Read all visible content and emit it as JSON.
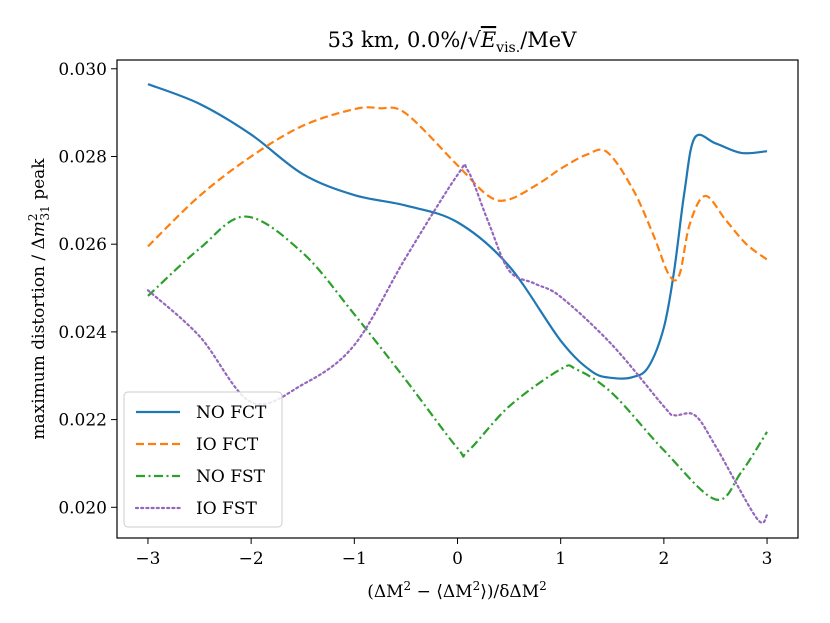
{
  "chart_data": {
    "type": "line",
    "title": "53 km, 0.0%/√E_vis./MeV",
    "title_parts": {
      "prefix": "53 km, 0.0%/",
      "evis": "E",
      "evis_sub": "vis.",
      "suffix": "/MeV"
    },
    "xlabel": "(ΔM² − ⟨ΔM²⟩)/δΔM²",
    "xlabel_parts": {
      "a": "(ΔM",
      "b": "2",
      "c": " − ⟨ΔM",
      "d": "2",
      "e": "⟩)/δΔM",
      "f": "2"
    },
    "ylabel": "maximum distortion / Δm²₃₁ peak",
    "ylabel_parts": {
      "a": "maximum distortion / Δ",
      "m": "m",
      "sup": "2",
      "sub": "31",
      "b": " peak"
    },
    "xlim": [
      -3.3,
      3.3
    ],
    "ylim": [
      0.0193,
      0.0302
    ],
    "xticks": [
      -3,
      -2,
      -1,
      0,
      1,
      2,
      3
    ],
    "xtick_labels": [
      "−3",
      "−2",
      "−1",
      "0",
      "1",
      "2",
      "3"
    ],
    "yticks": [
      0.02,
      0.022,
      0.024,
      0.026,
      0.028,
      0.03
    ],
    "ytick_labels": [
      "0.020",
      "0.022",
      "0.024",
      "0.026",
      "0.028",
      "0.030"
    ],
    "legend_position": "lower-left",
    "series": [
      {
        "name": "NO FCT",
        "color": "#1f77b4",
        "dash": "solid",
        "x": [
          -3,
          -2.5,
          -2,
          -1.5,
          -1,
          -0.5,
          0,
          0.5,
          1,
          1.3,
          1.5,
          1.7,
          1.85,
          2.0,
          2.1,
          2.2,
          2.3,
          2.5,
          2.75,
          3
        ],
        "y": [
          0.02965,
          0.0292,
          0.0285,
          0.0276,
          0.02712,
          0.02688,
          0.0265,
          0.0255,
          0.0238,
          0.0231,
          0.02295,
          0.02297,
          0.0232,
          0.0241,
          0.0254,
          0.0272,
          0.02843,
          0.0283,
          0.02808,
          0.02812
        ]
      },
      {
        "name": "IO FCT",
        "color": "#ff7f0e",
        "dash": "dashed",
        "x": [
          -3,
          -2.5,
          -2,
          -1.5,
          -1,
          -0.75,
          -0.5,
          0,
          0.3,
          0.5,
          0.8,
          1.0,
          1.25,
          1.45,
          1.7,
          1.9,
          2.05,
          2.15,
          2.25,
          2.4,
          2.6,
          2.8,
          3
        ],
        "y": [
          0.02595,
          0.0271,
          0.028,
          0.0287,
          0.02908,
          0.0291,
          0.02898,
          0.0278,
          0.0271,
          0.02702,
          0.0274,
          0.02772,
          0.02804,
          0.0281,
          0.02725,
          0.0262,
          0.0253,
          0.0253,
          0.02645,
          0.0271,
          0.02655,
          0.026,
          0.02565
        ]
      },
      {
        "name": "NO FST",
        "color": "#2ca02c",
        "dash": "dashdot",
        "x": [
          -3,
          -2.5,
          -2.05,
          -1.5,
          -1,
          -0.5,
          0,
          0.1,
          0.5,
          1.0,
          1.15,
          1.5,
          2.0,
          2.5,
          2.75,
          3
        ],
        "y": [
          0.02482,
          0.0259,
          0.02663,
          0.0258,
          0.0244,
          0.0229,
          0.02135,
          0.02128,
          0.0223,
          0.02315,
          0.02315,
          0.0226,
          0.0213,
          0.02018,
          0.0208,
          0.02172
        ]
      },
      {
        "name": "IO FST",
        "color": "#9467bd",
        "dash": "dotted",
        "x": [
          -3,
          -2.5,
          -2,
          -1.5,
          -1,
          -0.5,
          0,
          0.1,
          0.3,
          0.5,
          0.75,
          1.0,
          1.5,
          2.0,
          2.1,
          2.3,
          2.5,
          2.9,
          3
        ],
        "y": [
          0.02495,
          0.0239,
          0.0224,
          0.0228,
          0.0237,
          0.0257,
          0.02758,
          0.02768,
          0.0265,
          0.0254,
          0.0251,
          0.0248,
          0.0237,
          0.0223,
          0.0221,
          0.0221,
          0.0214,
          0.01975,
          0.01982
        ]
      }
    ]
  }
}
